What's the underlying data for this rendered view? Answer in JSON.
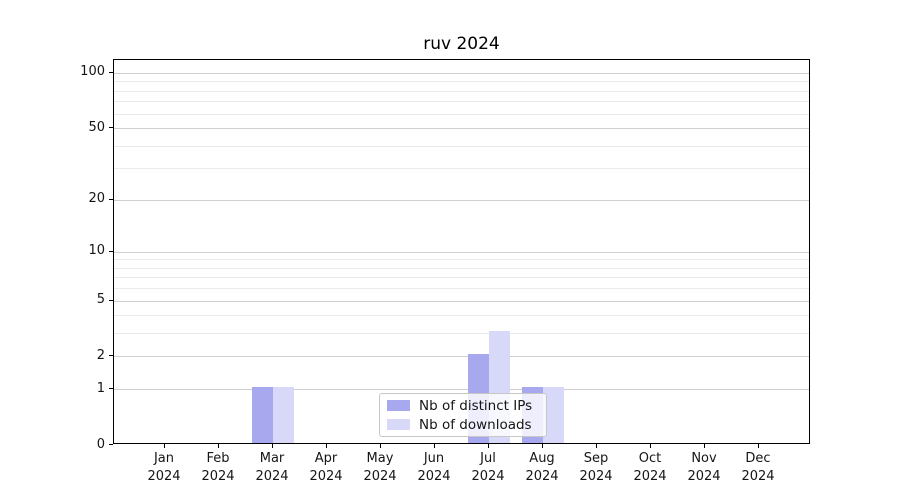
{
  "chart_data": {
    "type": "bar",
    "title": "ruv 2024",
    "categories": [
      {
        "month": "Jan",
        "year": "2024"
      },
      {
        "month": "Feb",
        "year": "2024"
      },
      {
        "month": "Mar",
        "year": "2024"
      },
      {
        "month": "Apr",
        "year": "2024"
      },
      {
        "month": "May",
        "year": "2024"
      },
      {
        "month": "Jun",
        "year": "2024"
      },
      {
        "month": "Jul",
        "year": "2024"
      },
      {
        "month": "Aug",
        "year": "2024"
      },
      {
        "month": "Sep",
        "year": "2024"
      },
      {
        "month": "Oct",
        "year": "2024"
      },
      {
        "month": "Nov",
        "year": "2024"
      },
      {
        "month": "Dec",
        "year": "2024"
      }
    ],
    "series": [
      {
        "name": "Nb of distinct IPs",
        "color": "#a8a8ee",
        "values": [
          0,
          0,
          1,
          0,
          0,
          0,
          2,
          1,
          0,
          0,
          0,
          0
        ]
      },
      {
        "name": "Nb of downloads",
        "color": "#d8d8f8",
        "values": [
          0,
          0,
          1,
          0,
          0,
          0,
          3,
          1,
          0,
          0,
          0,
          0
        ]
      }
    ],
    "xlabel": "",
    "ylabel": "",
    "y_axis": {
      "scale": "log1p",
      "major_ticks": [
        0,
        1,
        2,
        5,
        10,
        20,
        50,
        100
      ],
      "minor_gridlines": [
        3,
        4,
        6,
        7,
        8,
        9,
        30,
        40,
        60,
        70,
        80,
        90
      ],
      "ymin": 0,
      "ymax": 117.6
    },
    "grid": true,
    "legend_position": "lower center"
  },
  "legend": {
    "items": [
      {
        "label": "Nb of distinct IPs"
      },
      {
        "label": "Nb of downloads"
      }
    ]
  },
  "title": {
    "text": "ruv 2024"
  }
}
